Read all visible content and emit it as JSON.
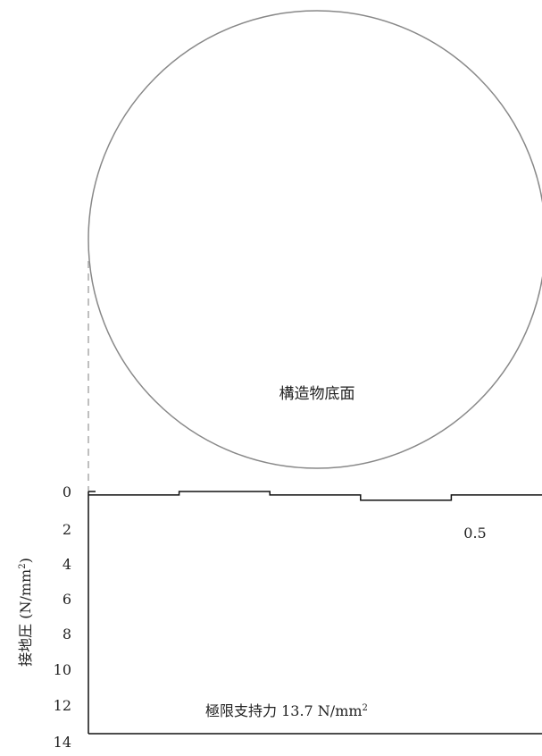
{
  "diagram": {
    "structure_label": "構造物底面",
    "y_axis_label": "接地圧 (N/mm",
    "y_axis_label_sup": "2",
    "y_axis_label_close": ")",
    "y_ticks": [
      "0",
      "2",
      "4",
      "6",
      "8",
      "10",
      "12",
      "14"
    ],
    "pressure_value_label": "0.5",
    "capacity_label": "極限支持力 13.7 N/mm",
    "capacity_label_sup": "2"
  },
  "chart_data": {
    "type": "line",
    "ylabel": "接地圧 (N/mm2)",
    "ylim": [
      0,
      14
    ],
    "y_inverted": true,
    "grid": false,
    "series": [
      {
        "values": [
          0.2,
          0.0,
          0.2,
          0.5,
          0.2
        ]
      }
    ],
    "annotations": [
      "0.5",
      "極限支持力 13.7 N/mm2"
    ]
  },
  "colors": {
    "circle": "#888888",
    "line": "#111111",
    "dashed": "#aaaaaa",
    "text": "#222222"
  }
}
